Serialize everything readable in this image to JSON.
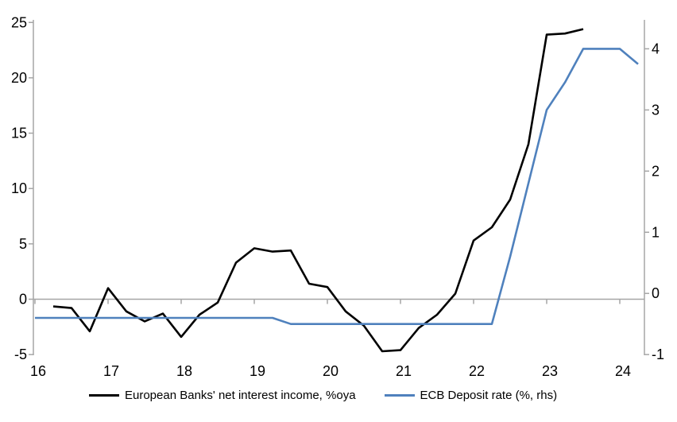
{
  "chart_data": {
    "type": "line",
    "title": "",
    "x_axis": {
      "ticks": [
        "16",
        "17",
        "18",
        "19",
        "20",
        "21",
        "22",
        "23",
        "24"
      ],
      "tick_values": [
        16,
        17,
        18,
        19,
        20,
        21,
        22,
        23,
        24
      ],
      "min": 16,
      "max": 24.35
    },
    "y_axis_left": {
      "ticks": [
        "25",
        "20",
        "15",
        "10",
        "5",
        "0",
        "-5"
      ],
      "tick_values": [
        25,
        20,
        15,
        10,
        5,
        0,
        -5
      ],
      "min": -5,
      "max": 25.2
    },
    "y_axis_right": {
      "ticks": [
        "4",
        "3",
        "2",
        "1",
        "0",
        "-1"
      ],
      "tick_values": [
        4,
        3,
        2,
        1,
        0,
        -1
      ],
      "min": -1,
      "max": 4.43
    },
    "grid": "zero-line-only",
    "legend_position": "bottom",
    "axis_color": "#A6A6A6",
    "series": [
      {
        "name": "European Banks' net interest income, %oya",
        "axis": "left",
        "color": "#000000",
        "points": [
          [
            16.25,
            -0.65
          ],
          [
            16.5,
            -0.8
          ],
          [
            16.75,
            -2.9
          ],
          [
            17.0,
            1.0
          ],
          [
            17.25,
            -1.1
          ],
          [
            17.5,
            -2.0
          ],
          [
            17.75,
            -1.3
          ],
          [
            18.0,
            -3.4
          ],
          [
            18.25,
            -1.4
          ],
          [
            18.5,
            -0.3
          ],
          [
            18.75,
            3.3
          ],
          [
            19.0,
            4.6
          ],
          [
            19.25,
            4.3
          ],
          [
            19.5,
            4.4
          ],
          [
            19.75,
            1.4
          ],
          [
            20.0,
            1.1
          ],
          [
            20.25,
            -1.1
          ],
          [
            20.5,
            -2.4
          ],
          [
            20.75,
            -4.7
          ],
          [
            21.0,
            -4.6
          ],
          [
            21.25,
            -2.6
          ],
          [
            21.5,
            -1.4
          ],
          [
            21.75,
            0.5
          ],
          [
            22.0,
            5.3
          ],
          [
            22.25,
            6.5
          ],
          [
            22.5,
            9.0
          ],
          [
            22.75,
            14.0
          ],
          [
            23.0,
            23.9
          ],
          [
            23.25,
            24.0
          ],
          [
            23.5,
            24.4
          ]
        ]
      },
      {
        "name": "ECB Deposit rate (%, rhs)",
        "axis": "right",
        "color": "#4F81BD",
        "points": [
          [
            16.0,
            -0.4
          ],
          [
            19.25,
            -0.4
          ],
          [
            19.5,
            -0.5
          ],
          [
            22.25,
            -0.5
          ],
          [
            22.5,
            0.6
          ],
          [
            22.75,
            1.8
          ],
          [
            23.0,
            3.0
          ],
          [
            23.25,
            3.45
          ],
          [
            23.5,
            4.0
          ],
          [
            24.0,
            4.0
          ],
          [
            24.25,
            3.75
          ]
        ]
      }
    ]
  },
  "legend": {
    "items": [
      {
        "label": "European Banks' net interest income, %oya",
        "color": "#000000"
      },
      {
        "label": "ECB Deposit rate (%, rhs)",
        "color": "#4F81BD"
      }
    ]
  }
}
